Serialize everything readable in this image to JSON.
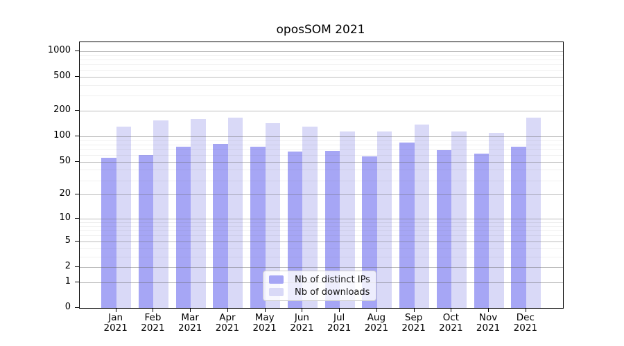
{
  "chart_data": {
    "type": "bar",
    "title": "oposSOM 2021",
    "categories": [
      "Jan 2021",
      "Feb 2021",
      "Mar 2021",
      "Apr 2021",
      "May 2021",
      "Jun 2021",
      "Jul 2021",
      "Aug 2021",
      "Sep 2021",
      "Oct 2021",
      "Nov 2021",
      "Dec 2021"
    ],
    "series": [
      {
        "name": "Nb of distinct IPs",
        "color": "#a6a6f5",
        "values": [
          56,
          60,
          76,
          81,
          76,
          66,
          68,
          58,
          84,
          69,
          63,
          76
        ]
      },
      {
        "name": "Nb of downloads",
        "color": "#d9d9f7",
        "values": [
          130,
          154,
          160,
          167,
          142,
          131,
          115,
          114,
          139,
          114,
          111,
          166
        ]
      }
    ],
    "yscale": "log1p",
    "ylim": [
      0,
      1000
    ],
    "yticks": [
      0,
      1,
      2,
      5,
      10,
      20,
      50,
      100,
      200,
      500,
      1000
    ],
    "yminor_ticks": [
      3,
      4,
      6,
      7,
      8,
      9,
      30,
      40,
      60,
      70,
      80,
      90,
      300,
      400,
      600,
      700,
      800,
      900
    ],
    "grid": true,
    "legend": {
      "position": "lower center inside"
    }
  }
}
